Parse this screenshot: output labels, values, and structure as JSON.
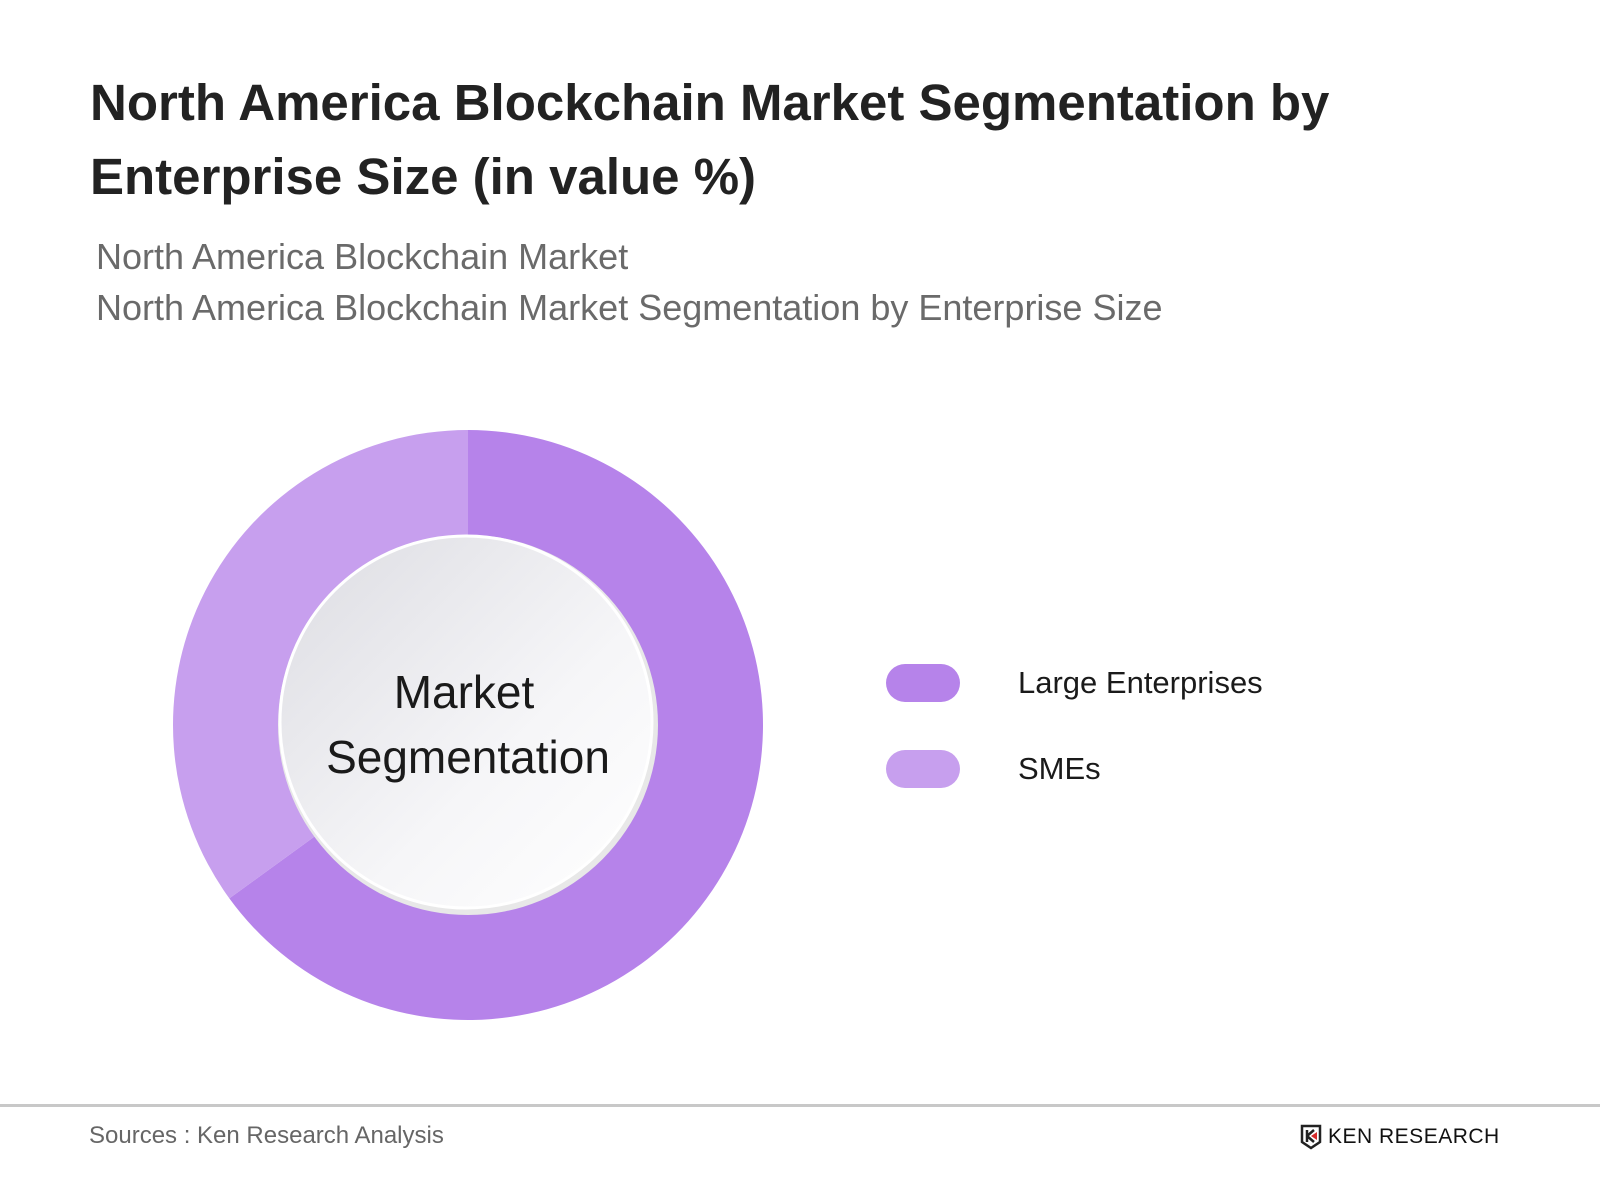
{
  "title": "North America Blockchain Market Segmentation by Enterprise Size (in value %)",
  "subtitle_lines": [
    "North America Blockchain Market",
    "North America Blockchain Market Segmentation by Enterprise Size"
  ],
  "chart_data": {
    "type": "pie",
    "variant": "donut",
    "center_label": "Market Segmentation",
    "center_label_lines": [
      "Market",
      "Segmentation"
    ],
    "categories": [
      "Large Enterprises",
      "SMEs"
    ],
    "values": [
      65,
      35
    ],
    "unit": "%",
    "colors": [
      "#B683EA",
      "#C79FEE"
    ],
    "legend_position": "right"
  },
  "footer": {
    "source": "Sources : Ken Research Analysis",
    "logo_text": "KEN RESEARCH"
  }
}
